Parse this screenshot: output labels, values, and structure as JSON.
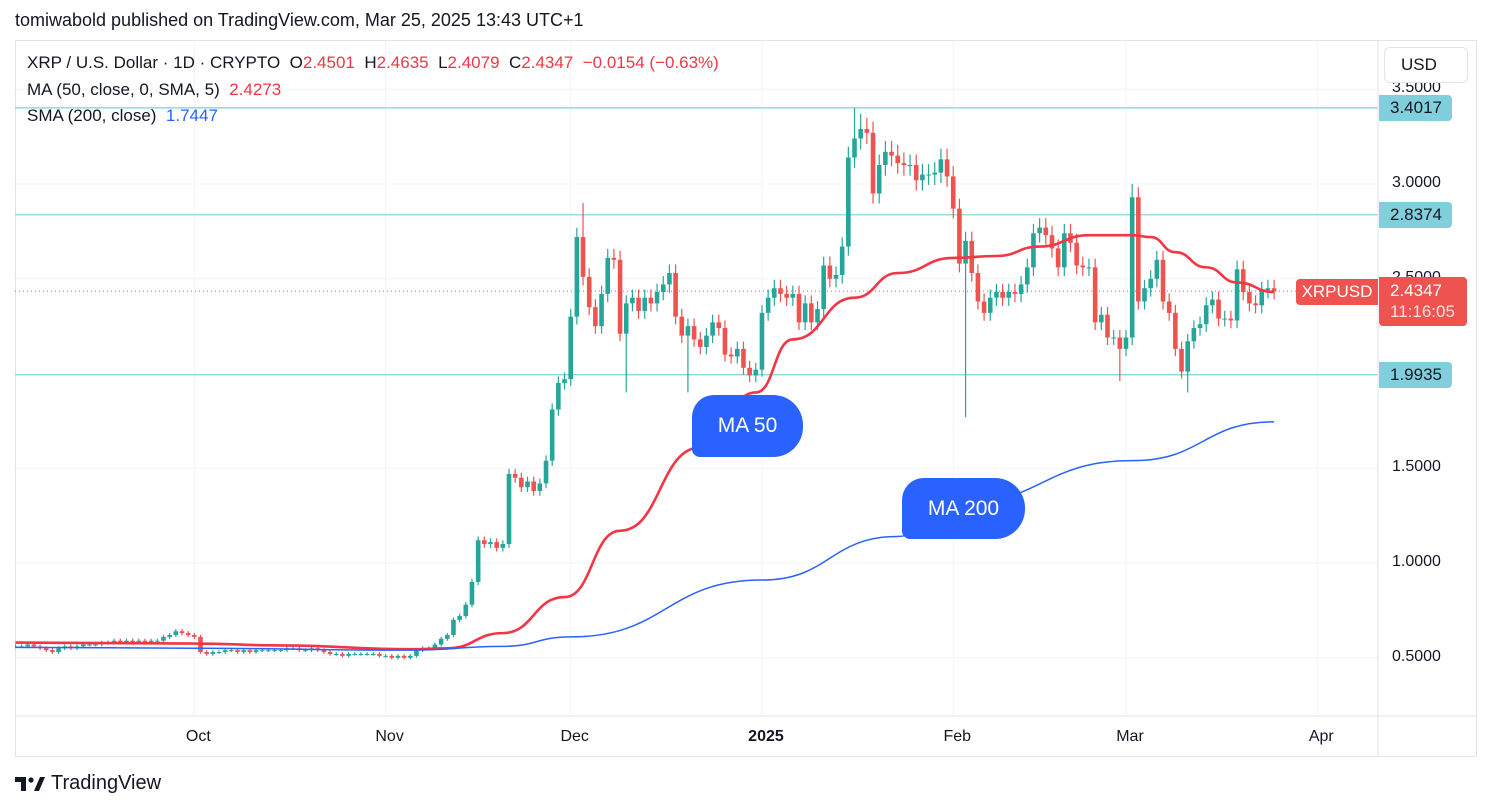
{
  "header": {
    "published": "tomiwabold published on TradingView.com, Mar 25, 2025 13:43 UTC+1"
  },
  "legend": {
    "symbol": "XRP / U.S. Dollar · 1D · CRYPTO",
    "o_label": "O",
    "o": "2.4501",
    "h_label": "H",
    "h": "2.4635",
    "l_label": "L",
    "l": "2.4079",
    "c_label": "C",
    "c": "2.4347",
    "change": "−0.0154 (−0.63%)",
    "ma50_label": "MA (50, close, 0, SMA, 5)",
    "ma50_value": "2.4273",
    "sma200_label": "SMA (200, close)",
    "sma200_value": "1.7447"
  },
  "currency": "USD",
  "price_badges": [
    {
      "value": "3.4017"
    },
    {
      "value": "2.8374"
    },
    {
      "value": "1.9935"
    }
  ],
  "last_price": {
    "symbol": "XRPUSD",
    "value": "2.4347",
    "countdown": "11:16:05"
  },
  "annotations": {
    "ma50": "MA 50",
    "ma200": "MA 200"
  },
  "footer": {
    "brand": "TradingView"
  },
  "colors": {
    "up": "#26a69a",
    "down": "#ef5350",
    "ma50": "#f23645",
    "sma200": "#2962ff",
    "hline": "#81cfdc",
    "annotation": "#2962ff"
  },
  "chart_data": {
    "type": "candlestick",
    "interval": "1D",
    "x_start": "2024-09-02",
    "x_ticks": [
      {
        "date": "2024-10-01",
        "label": "Oct"
      },
      {
        "date": "2024-11-01",
        "label": "Nov"
      },
      {
        "date": "2024-12-01",
        "label": "Dec"
      },
      {
        "date": "2025-01-01",
        "label": "2025",
        "bold": true
      },
      {
        "date": "2025-02-01",
        "label": "Feb"
      },
      {
        "date": "2025-03-01",
        "label": "Mar"
      },
      {
        "date": "2025-04-01",
        "label": "Apr"
      }
    ],
    "y_ticks": [
      "3.5000",
      "3.0000",
      "2.5000",
      "1.5000",
      "1.0000",
      "0.5000"
    ],
    "ylim": [
      0.2,
      3.55
    ],
    "grid": true,
    "closes": [
      0.56,
      0.56,
      0.57,
      0.56,
      0.55,
      0.54,
      0.53,
      0.55,
      0.56,
      0.55,
      0.56,
      0.57,
      0.57,
      0.57,
      0.58,
      0.58,
      0.59,
      0.58,
      0.59,
      0.58,
      0.59,
      0.58,
      0.59,
      0.59,
      0.61,
      0.62,
      0.64,
      0.63,
      0.62,
      0.61,
      0.53,
      0.52,
      0.53,
      0.53,
      0.54,
      0.54,
      0.53,
      0.54,
      0.53,
      0.54,
      0.54,
      0.54,
      0.54,
      0.54,
      0.55,
      0.55,
      0.54,
      0.54,
      0.55,
      0.54,
      0.53,
      0.52,
      0.52,
      0.51,
      0.52,
      0.52,
      0.52,
      0.52,
      0.52,
      0.51,
      0.51,
      0.5,
      0.51,
      0.5,
      0.51,
      0.54,
      0.55,
      0.55,
      0.57,
      0.6,
      0.62,
      0.7,
      0.72,
      0.78,
      0.9,
      1.12,
      1.1,
      1.11,
      1.08,
      1.1,
      1.47,
      1.45,
      1.4,
      1.43,
      1.38,
      1.42,
      1.54,
      1.81,
      1.95,
      1.97,
      2.3,
      2.72,
      2.51,
      2.35,
      2.25,
      2.42,
      2.61,
      2.6,
      2.21,
      2.37,
      2.4,
      2.33,
      2.4,
      2.37,
      2.43,
      2.47,
      2.53,
      2.3,
      2.2,
      2.25,
      2.18,
      2.14,
      2.2,
      2.27,
      2.24,
      2.1,
      2.09,
      2.13,
      2.03,
      1.99,
      2.02,
      2.32,
      2.4,
      2.45,
      2.42,
      2.4,
      2.42,
      2.27,
      2.37,
      2.27,
      2.34,
      2.57,
      2.5,
      2.52,
      2.67,
      3.14,
      3.24,
      3.29,
      3.27,
      2.95,
      3.1,
      3.17,
      3.15,
      3.11,
      3.1,
      3.1,
      3.02,
      3.05,
      3.05,
      3.06,
      3.13,
      3.04,
      2.87,
      2.58,
      2.7,
      2.53,
      2.38,
      2.32,
      2.4,
      2.43,
      2.4,
      2.43,
      2.42,
      2.47,
      2.56,
      2.74,
      2.77,
      2.73,
      2.66,
      2.56,
      2.74,
      2.69,
      2.57,
      2.56,
      2.56,
      2.27,
      2.31,
      2.19,
      2.19,
      2.13,
      2.19,
      2.93,
      2.38,
      2.45,
      2.5,
      2.6,
      2.38,
      2.32,
      2.13,
      2.01,
      2.17,
      2.24,
      2.26,
      2.36,
      2.39,
      2.29,
      2.29,
      2.28,
      2.55,
      2.43,
      2.37,
      2.36,
      2.44,
      2.45,
      2.4347
    ],
    "wick_extremes": [
      {
        "date": "2024-12-03",
        "high": 2.9
      },
      {
        "date": "2024-12-10",
        "low": 1.9
      },
      {
        "date": "2024-12-20",
        "low": 1.9
      },
      {
        "date": "2025-01-16",
        "high": 3.4
      },
      {
        "date": "2025-01-17",
        "high": 3.37
      },
      {
        "date": "2025-02-03",
        "low": 1.77
      },
      {
        "date": "2025-02-28",
        "low": 1.96
      },
      {
        "date": "2025-03-02",
        "high": 3.0
      },
      {
        "date": "2025-03-11",
        "low": 1.9
      }
    ],
    "series": [
      {
        "name": "MA (50, close, 0, SMA, 5)",
        "points": [
          [
            "2024-09-02",
            0.58
          ],
          [
            "2024-10-01",
            0.575
          ],
          [
            "2024-10-15",
            0.565
          ],
          [
            "2024-11-05",
            0.545
          ],
          [
            "2024-11-11",
            0.55
          ],
          [
            "2024-11-20",
            0.63
          ],
          [
            "2024-11-30",
            0.82
          ],
          [
            "2024-12-09",
            1.17
          ],
          [
            "2024-12-22",
            1.61
          ],
          [
            "2024-12-31",
            1.9
          ],
          [
            "2025-01-06",
            2.18
          ],
          [
            "2025-01-16",
            2.4
          ],
          [
            "2025-01-23",
            2.53
          ],
          [
            "2025-02-01",
            2.61
          ],
          [
            "2025-02-08",
            2.62
          ],
          [
            "2025-02-15",
            2.67
          ],
          [
            "2025-02-23",
            2.73
          ],
          [
            "2025-03-02",
            2.73
          ],
          [
            "2025-03-05",
            2.72
          ],
          [
            "2025-03-09",
            2.64
          ],
          [
            "2025-03-14",
            2.56
          ],
          [
            "2025-03-19",
            2.48
          ],
          [
            "2025-03-25",
            2.43
          ]
        ]
      },
      {
        "name": "SMA (200, close)",
        "points": [
          [
            "2024-09-02",
            0.555
          ],
          [
            "2024-10-01",
            0.55
          ],
          [
            "2024-11-05",
            0.54
          ],
          [
            "2024-11-20",
            0.56
          ],
          [
            "2024-12-01",
            0.61
          ],
          [
            "2025-01-01",
            0.91
          ],
          [
            "2025-01-23",
            1.14
          ],
          [
            "2025-02-01",
            1.31
          ],
          [
            "2025-03-02",
            1.54
          ],
          [
            "2025-03-25",
            1.745
          ]
        ]
      }
    ],
    "hlines": [
      3.4017,
      2.8374,
      1.9935
    ],
    "last_price": 2.4347
  }
}
